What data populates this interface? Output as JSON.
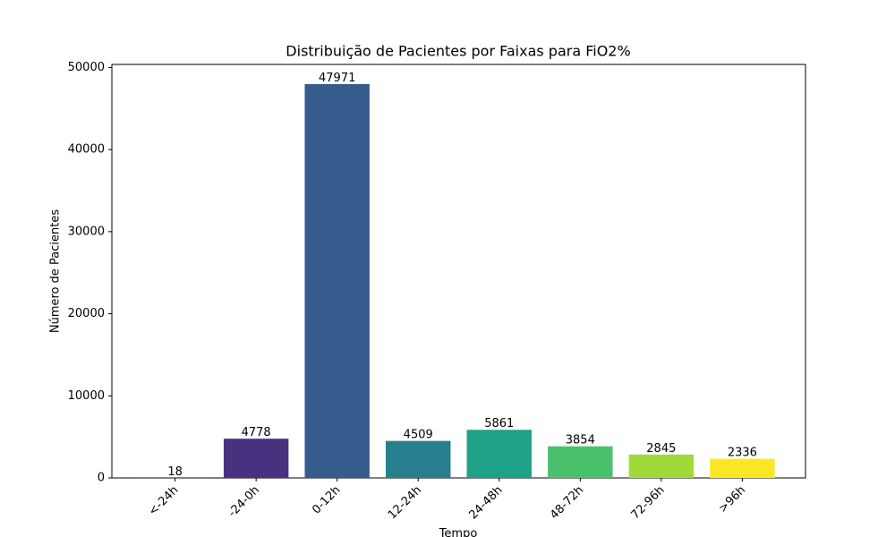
{
  "chart_data": {
    "type": "bar",
    "title": "Distribuição de Pacientes por Faixas para FiO2%",
    "x_label": "Tempo",
    "y_label": "Número de Pacientes",
    "categories": [
      "<-24h",
      "-24-0h",
      "0-12h",
      "12-24h",
      "24-48h",
      "48-72h",
      "72-96h",
      ">96h"
    ],
    "values": [
      18,
      4778,
      47971,
      4509,
      5861,
      3854,
      2845,
      2336
    ],
    "colors": [
      "#440154",
      "#46327e",
      "#365c8d",
      "#277f8e",
      "#1fa187",
      "#4ac16d",
      "#a0da39",
      "#fde725"
    ],
    "ylim": [
      0,
      50370
    ],
    "yticks": [
      0,
      10000,
      20000,
      30000,
      40000,
      50000
    ],
    "grid": false
  }
}
